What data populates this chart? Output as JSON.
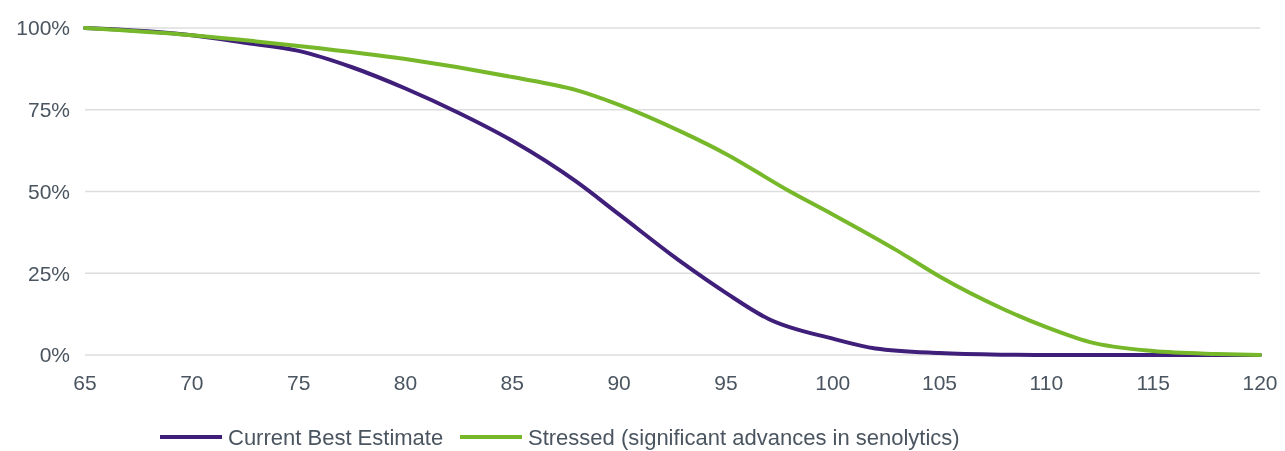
{
  "chart_data": {
    "type": "line",
    "x": [
      65,
      70,
      72.5,
      75,
      77.5,
      80,
      82.5,
      85,
      88,
      90,
      93,
      95,
      97,
      100,
      102,
      105,
      108,
      110,
      112,
      115,
      118,
      120
    ],
    "series": [
      {
        "name": "Current Best Estimate",
        "color": "#3f1f7a",
        "values": [
          100,
          97.8,
          95.5,
          93,
          88,
          81.5,
          74,
          65.5,
          53,
          43,
          28,
          19,
          11,
          5,
          2,
          0.6,
          0.1,
          0,
          0,
          0,
          0,
          0
        ]
      },
      {
        "name": "Stressed (significant advances in senolytics)",
        "color": "#76b82a",
        "x": [
          65,
          70,
          75,
          80,
          85,
          88,
          90,
          93,
          95,
          98,
          100,
          103,
          105,
          108,
          110,
          112,
          115,
          118,
          120
        ],
        "values": [
          100,
          97.8,
          94.5,
          90.5,
          85,
          81,
          76.5,
          68,
          61.5,
          50,
          43,
          32,
          24,
          14,
          8.5,
          4,
          1.2,
          0.3,
          0
        ]
      }
    ],
    "xlim": [
      65,
      120
    ],
    "xticks": [
      65,
      70,
      75,
      80,
      85,
      90,
      95,
      100,
      105,
      110,
      115,
      120
    ],
    "ylim": [
      0,
      100
    ],
    "yticks": [
      {
        "value": 0,
        "label": "0%"
      },
      {
        "value": 25,
        "label": "25%"
      },
      {
        "value": 50,
        "label": "50%"
      },
      {
        "value": 75,
        "label": "75%"
      },
      {
        "value": 100,
        "label": "100%"
      }
    ],
    "grid": "y",
    "legend": "bottom",
    "marker": "none",
    "line_style": "solid"
  }
}
